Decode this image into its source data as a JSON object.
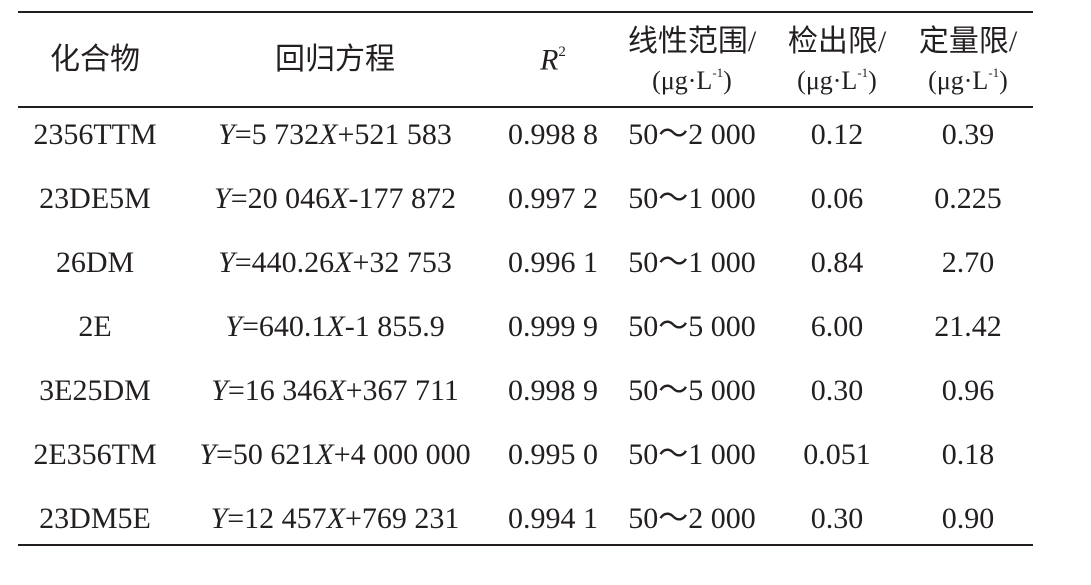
{
  "table": {
    "headers": [
      {
        "text": "化合物"
      },
      {
        "text": "回归方程"
      },
      {
        "text": "R",
        "sup": "2"
      },
      {
        "text": "线性范围/",
        "unit": "(μg·L",
        "unit_sup": "-1",
        "unit_end": ")"
      },
      {
        "text": "检出限/",
        "unit": "(μg·L",
        "unit_sup": "-1",
        "unit_end": ")"
      },
      {
        "text": "定量限/",
        "unit": "(μg·L",
        "unit_sup": "-1",
        "unit_end": ")"
      }
    ],
    "rows": [
      [
        "2356TTM",
        "Y=5 732X+521 583",
        "0.998 8",
        "50～2 000",
        "0.12",
        "0.39"
      ],
      [
        "23DE5M",
        "Y=20 046X-177 872",
        "0.997 2",
        "50～1 000",
        "0.06",
        "0.225"
      ],
      [
        "26DM",
        "Y=440.26X+32 753",
        "0.996 1",
        "50～1 000",
        "0.84",
        "2.70"
      ],
      [
        "2E",
        "Y=640.1X-1 855.9",
        "0.999 9",
        "50～5 000",
        "6.00",
        "21.42"
      ],
      [
        "3E25DM",
        "Y=16 346X+367 711",
        "0.998 9",
        "50～5 000",
        "0.30",
        "0.96"
      ],
      [
        "2E356TM",
        "Y=50 621X+4 000 000",
        "0.995 0",
        "50～1 000",
        "0.051",
        "0.18"
      ],
      [
        "23DM5E",
        "Y=12 457X+769 231",
        "0.994 1",
        "50～2 000",
        "0.30",
        "0.90"
      ]
    ]
  }
}
